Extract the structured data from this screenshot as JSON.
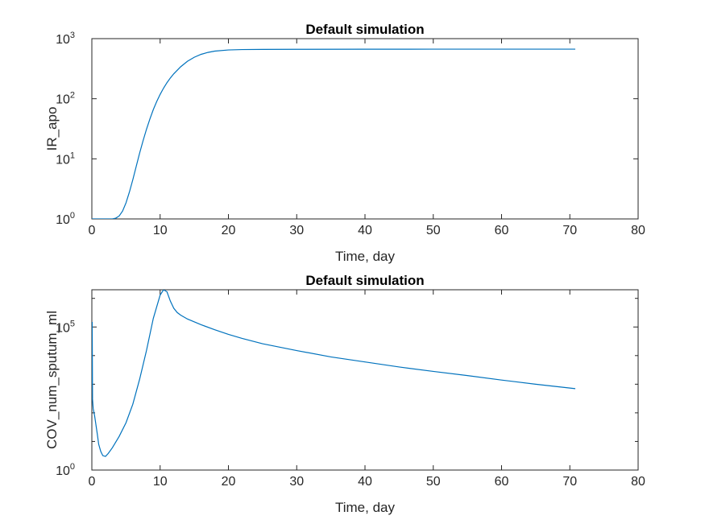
{
  "chart_data": [
    {
      "type": "line",
      "title": "Default simulation",
      "xlabel": "Time, day",
      "ylabel": "IR_apo",
      "xscale": "linear",
      "yscale": "log",
      "xlim": [
        0,
        80
      ],
      "ylim": [
        1,
        1000
      ],
      "xticks": [
        0,
        10,
        20,
        30,
        40,
        50,
        60,
        70,
        80
      ],
      "yticks": [
        {
          "value": 1,
          "base": "10",
          "exp": "0"
        },
        {
          "value": 10,
          "base": "10",
          "exp": "1"
        },
        {
          "value": 100,
          "base": "10",
          "exp": "2"
        },
        {
          "value": 1000,
          "base": "10",
          "exp": "3"
        }
      ],
      "grid": false,
      "color": "#0072BD",
      "series": [
        {
          "x": [
            0,
            1,
            2,
            3,
            3.5,
            4,
            4.5,
            5,
            5.5,
            6,
            6.5,
            7,
            7.5,
            8,
            8.5,
            9,
            9.5,
            10,
            10.5,
            11,
            11.5,
            12,
            13,
            14,
            15,
            16,
            17,
            18,
            20,
            22,
            25,
            30,
            40,
            50,
            60,
            70.8
          ],
          "y": [
            1,
            1,
            1,
            1,
            1.03,
            1.12,
            1.35,
            1.85,
            2.8,
            4.5,
            7.5,
            12.5,
            20,
            31,
            46,
            66,
            90,
            118,
            150,
            185,
            222,
            260,
            340,
            420,
            490,
            548,
            590,
            620,
            648,
            658,
            662,
            665,
            667,
            668,
            668,
            668
          ]
        }
      ]
    },
    {
      "type": "line",
      "title": "Default simulation",
      "xlabel": "Time, day",
      "ylabel": "COV_num_sputum_ml",
      "xscale": "linear",
      "yscale": "log",
      "xlim": [
        0,
        80
      ],
      "ylim": [
        1,
        2000000
      ],
      "xticks": [
        0,
        10,
        20,
        30,
        40,
        50,
        60,
        70,
        80
      ],
      "yticks": [
        {
          "value": 1,
          "base": "10",
          "exp": "0"
        },
        {
          "value": 100000,
          "base": "10",
          "exp": "5"
        }
      ],
      "grid": false,
      "color": "#0072BD",
      "series": [
        {
          "x": [
            0,
            0.05,
            0.1,
            0.2,
            0.4,
            0.6,
            0.8,
            1,
            1.3,
            1.6,
            2,
            2.4,
            3,
            4,
            5,
            6,
            7,
            8,
            9,
            10,
            10.5,
            11,
            11.5,
            12,
            12.5,
            13,
            14,
            16,
            18,
            20,
            22,
            25,
            30,
            35,
            40,
            45,
            50,
            55,
            60,
            65,
            70.8
          ],
          "y": [
            1000,
            150000,
            300,
            140,
            80,
            38,
            18,
            8,
            4.5,
            3.2,
            3,
            3.8,
            6,
            15,
            45,
            200,
            1500,
            15000,
            200000,
            1300000,
            2000000,
            1700000,
            800000,
            450000,
            320000,
            260000,
            190000,
            120000,
            80000,
            55000,
            40000,
            26000,
            15000,
            9000,
            6000,
            4000,
            2800,
            2000,
            1400,
            1000,
            700
          ]
        }
      ]
    }
  ]
}
